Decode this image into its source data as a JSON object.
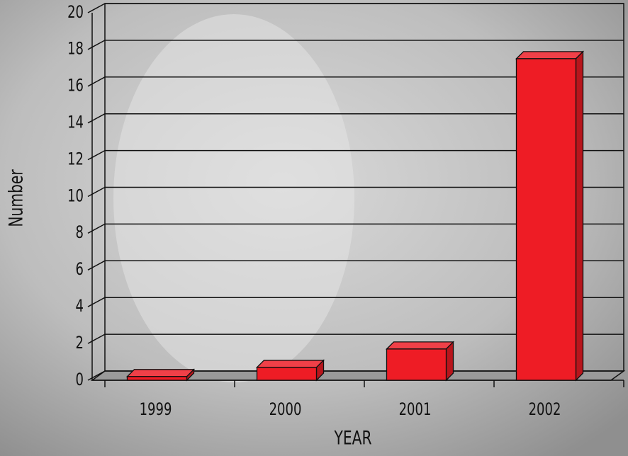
{
  "chart_data": {
    "type": "bar3d",
    "xlabel": "YEAR",
    "ylabel": "Number",
    "categories": [
      "1999",
      "2000",
      "2001",
      "2002"
    ],
    "values": [
      0.2,
      0.7,
      1.7,
      17.5
    ],
    "color": "#ee1c25",
    "ylim": [
      0,
      20
    ],
    "yticks": [
      0,
      2,
      4,
      6,
      8,
      10,
      12,
      14,
      16,
      18,
      20
    ],
    "grid": true
  }
}
